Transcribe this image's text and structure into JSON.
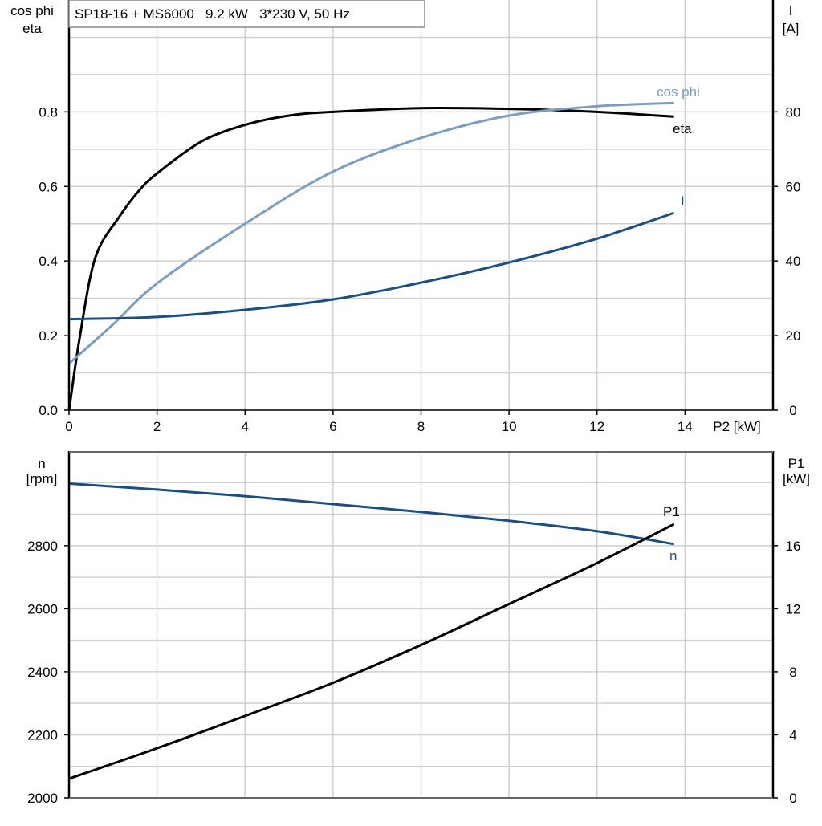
{
  "chart_data": [
    {
      "type": "line",
      "title": "SP18-16 + MS6000   9.2 kW   3*230 V, 50 Hz",
      "xlabel": "P2 [kW]",
      "ylabel_left": [
        "cos phi",
        "eta"
      ],
      "ylabel_right": [
        "I",
        "[A]"
      ],
      "xlim": [
        0,
        16
      ],
      "ylim_left": [
        0,
        1.1
      ],
      "ylim_right": [
        0,
        110
      ],
      "xticks": [
        "0",
        "2",
        "4",
        "6",
        "8",
        "10",
        "12",
        "14"
      ],
      "yticks_left": [
        "0.0",
        "0.2",
        "0.4",
        "0.6",
        "0.8"
      ],
      "yticks_right": [
        "0",
        "20",
        "40",
        "60",
        "80"
      ],
      "grid": true,
      "series": [
        {
          "name": "eta",
          "axis": "left",
          "color": "#000000",
          "x": [
            0,
            0.25,
            0.6,
            1.15,
            1.6,
            2,
            3,
            4,
            5,
            6,
            8,
            10,
            12,
            13.75
          ],
          "y": [
            0,
            0.2,
            0.41,
            0.52,
            0.59,
            0.635,
            0.72,
            0.765,
            0.79,
            0.8,
            0.81,
            0.808,
            0.8,
            0.787
          ]
        },
        {
          "name": "cos phi",
          "axis": "left",
          "color": "#7b9dc0",
          "x": [
            0,
            1,
            2,
            4,
            6,
            8,
            10,
            12,
            13.75
          ],
          "y": [
            0.125,
            0.23,
            0.34,
            0.5,
            0.64,
            0.73,
            0.79,
            0.815,
            0.824
          ]
        },
        {
          "name": "I",
          "axis": "right",
          "color": "#1b4f84",
          "x": [
            0,
            2,
            4,
            6,
            8,
            10,
            12,
            13.75
          ],
          "y": [
            24.4,
            25.0,
            26.9,
            29.7,
            34.2,
            39.6,
            46.0,
            52.9
          ]
        }
      ]
    },
    {
      "type": "line",
      "ylabel_left": [
        "n",
        "[rpm]"
      ],
      "ylabel_right": [
        "P1",
        "[kW]"
      ],
      "xlim": [
        0,
        16
      ],
      "ylim_left": [
        2000,
        3100
      ],
      "ylim_right": [
        0,
        22
      ],
      "yticks_left": [
        "2000",
        "2200",
        "2400",
        "2600",
        "2800"
      ],
      "yticks_right": [
        "0",
        "4",
        "8",
        "12",
        "16"
      ],
      "grid": true,
      "series": [
        {
          "name": "n",
          "axis": "left",
          "color": "#1b4f84",
          "x": [
            0,
            2,
            4,
            6,
            8,
            10,
            12,
            13.75
          ],
          "y": [
            2997,
            2978,
            2957,
            2932,
            2907,
            2879,
            2846,
            2805
          ]
        },
        {
          "name": "P1",
          "axis": "right",
          "color": "#000000",
          "x": [
            0,
            2,
            4,
            6,
            8,
            10,
            12,
            13.75
          ],
          "y": [
            1.22,
            3.15,
            5.2,
            7.3,
            9.7,
            12.3,
            14.9,
            17.37
          ]
        }
      ]
    }
  ]
}
